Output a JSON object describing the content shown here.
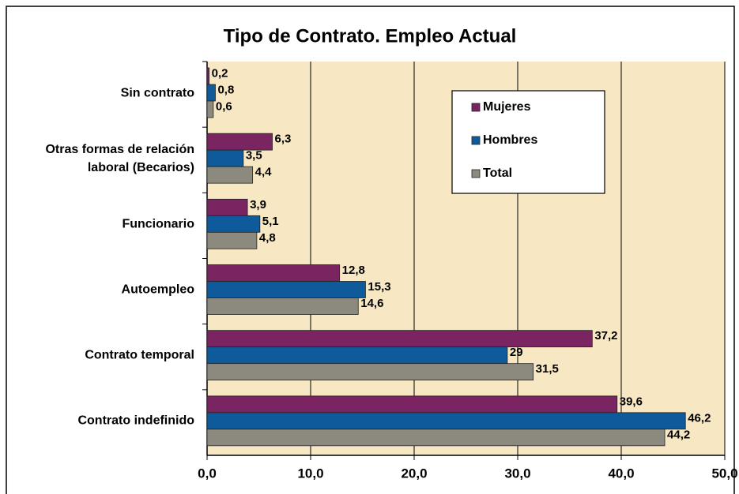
{
  "chart_data": {
    "type": "bar",
    "orientation": "horizontal",
    "title": "Tipo de Contrato. Empleo Actual",
    "categories": [
      "Sin contrato",
      "Otras formas de relación laboral (Becarios)",
      "Funcionario",
      "Autoempleo",
      "Contrato temporal",
      "Contrato indefinido"
    ],
    "series": [
      {
        "name": "Mujeres",
        "color": "#7a2462",
        "values": [
          0.2,
          6.3,
          3.9,
          12.8,
          37.2,
          39.6
        ],
        "value_labels": [
          "0,2",
          "6,3",
          "3,9",
          "12,8",
          "37,2",
          "39,6"
        ]
      },
      {
        "name": "Hombres",
        "color": "#0e5a9a",
        "values": [
          0.8,
          3.5,
          5.1,
          15.3,
          29,
          46.2
        ],
        "value_labels": [
          "0,8",
          "3,5",
          "5,1",
          "15,3",
          "29",
          "46,2"
        ]
      },
      {
        "name": "Total",
        "color": "#8c897f",
        "values": [
          0.6,
          4.4,
          4.8,
          14.6,
          31.5,
          44.2
        ],
        "value_labels": [
          "0,6",
          "4,4",
          "4,8",
          "14,6",
          "31,5",
          "44,2"
        ]
      }
    ],
    "xlim": [
      0,
      50
    ],
    "xticks": [
      {
        "value": 0,
        "label": "0,0"
      },
      {
        "value": 10,
        "label": "10,0"
      },
      {
        "value": 20,
        "label": "20,0"
      },
      {
        "value": 30,
        "label": "30,0"
      },
      {
        "value": 40,
        "label": "40,0"
      },
      {
        "value": 50,
        "label": "50,0"
      }
    ],
    "grid": true,
    "legend": "upper right"
  }
}
